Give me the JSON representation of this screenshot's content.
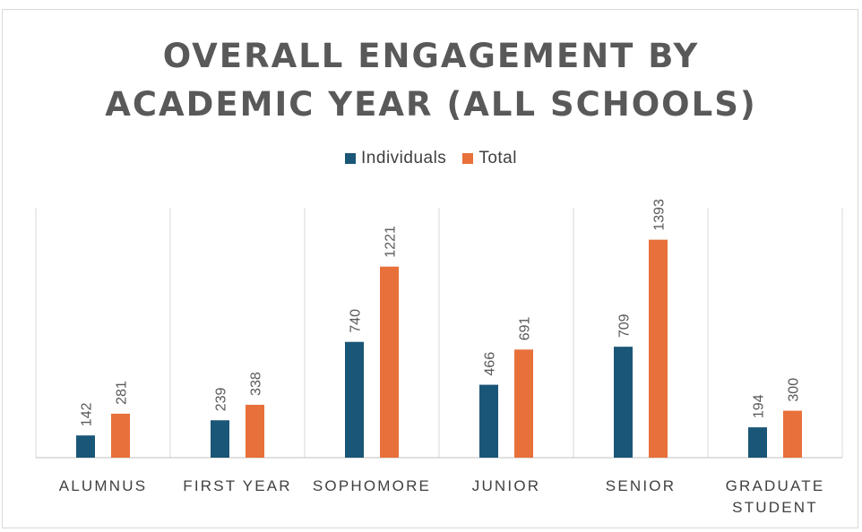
{
  "chart_data": {
    "type": "bar",
    "title_lines": [
      "OVERALL ENGAGEMENT BY",
      "ACADEMIC YEAR (ALL SCHOOLS)"
    ],
    "categories": [
      [
        "ALUMNUS"
      ],
      [
        "FIRST YEAR"
      ],
      [
        "SOPHOMORE"
      ],
      [
        "JUNIOR"
      ],
      [
        "SENIOR"
      ],
      [
        "GRADUATE",
        "STUDENT"
      ]
    ],
    "series": [
      {
        "name": "Individuals",
        "color": "#1a5677",
        "values": [
          142,
          239,
          740,
          466,
          709,
          194
        ]
      },
      {
        "name": "Total",
        "color": "#e8703a",
        "values": [
          281,
          338,
          1221,
          691,
          1393,
          300
        ]
      }
    ],
    "ylim": [
      0,
      1500
    ],
    "legend_position": "top",
    "grid": "vertical category separators",
    "data_labels": "rotated, above bars"
  }
}
